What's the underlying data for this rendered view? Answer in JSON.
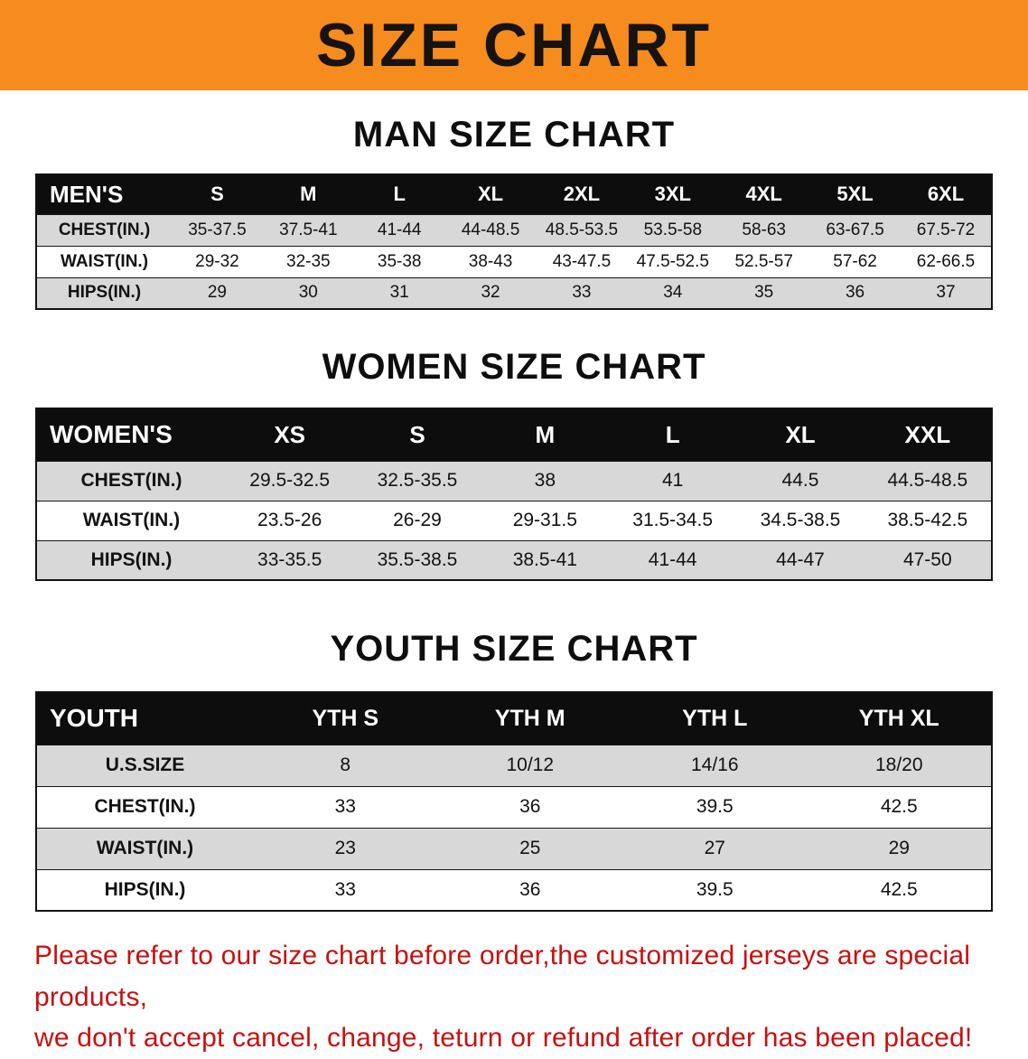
{
  "banner": {
    "title": "SIZE CHART"
  },
  "colors": {
    "banner_bg": "#f68b1e",
    "table_header_bg": "#0d0d0d",
    "row_alt_bg": "#d8d8d8",
    "note_text": "#c8100f"
  },
  "men": {
    "heading": "MAN SIZE CHART",
    "header": [
      "MEN'S",
      "S",
      "M",
      "L",
      "XL",
      "2XL",
      "3XL",
      "4XL",
      "5XL",
      "6XL"
    ],
    "rows": [
      [
        "CHEST(IN.)",
        "35-37.5",
        "37.5-41",
        "41-44",
        "44-48.5",
        "48.5-53.5",
        "53.5-58",
        "58-63",
        "63-67.5",
        "67.5-72"
      ],
      [
        "WAIST(IN.)",
        "29-32",
        "32-35",
        "35-38",
        "38-43",
        "43-47.5",
        "47.5-52.5",
        "52.5-57",
        "57-62",
        "62-66.5"
      ],
      [
        "HIPS(IN.)",
        "29",
        "30",
        "31",
        "32",
        "33",
        "34",
        "35",
        "36",
        "37"
      ]
    ]
  },
  "women": {
    "heading": "WOMEN SIZE CHART",
    "header": [
      "WOMEN'S",
      "XS",
      "S",
      "M",
      "L",
      "XL",
      "XXL"
    ],
    "rows": [
      [
        "CHEST(IN.)",
        "29.5-32.5",
        "32.5-35.5",
        "38",
        "41",
        "44.5",
        "44.5-48.5"
      ],
      [
        "WAIST(IN.)",
        "23.5-26",
        "26-29",
        "29-31.5",
        "31.5-34.5",
        "34.5-38.5",
        "38.5-42.5"
      ],
      [
        "HIPS(IN.)",
        "33-35.5",
        "35.5-38.5",
        "38.5-41",
        "41-44",
        "44-47",
        "47-50"
      ]
    ]
  },
  "youth": {
    "heading": "YOUTH SIZE CHART",
    "header": [
      "YOUTH",
      "YTH S",
      "YTH M",
      "YTH L",
      "YTH XL"
    ],
    "rows": [
      [
        "U.S.SIZE",
        "8",
        "10/12",
        "14/16",
        "18/20"
      ],
      [
        "CHEST(IN.)",
        "33",
        "36",
        "39.5",
        "42.5"
      ],
      [
        "WAIST(IN.)",
        "23",
        "25",
        "27",
        "29"
      ],
      [
        "HIPS(IN.)",
        "33",
        "36",
        "39.5",
        "42.5"
      ]
    ]
  },
  "note": {
    "line1": "Please refer to our size chart before order,the customized jerseys are special products,",
    "line2": "we don't accept cancel, change, teturn or refund after order has been placed!"
  }
}
